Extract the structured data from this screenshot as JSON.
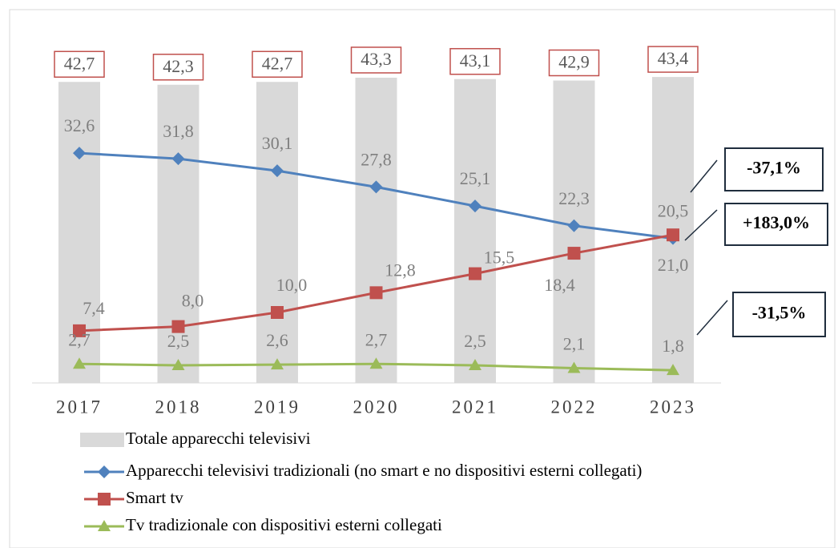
{
  "chart_data": {
    "type": "combo",
    "categories": [
      "2017",
      "2018",
      "2019",
      "2020",
      "2021",
      "2022",
      "2023"
    ],
    "ylim": [
      0,
      50
    ],
    "series": [
      {
        "name": "Totale apparecchi televisivi",
        "type": "bar",
        "color": "#d9d9d9",
        "values": [
          42.7,
          42.3,
          42.7,
          43.3,
          43.1,
          42.9,
          43.4
        ],
        "value_labels": [
          "42,7",
          "42,3",
          "42,7",
          "43,3",
          "43,1",
          "42,9",
          "43,4"
        ]
      },
      {
        "name": "Apparecchi televisivi tradizionali (no smart e no dispositivi esterni collegati)",
        "type": "line",
        "color": "#4f81bd",
        "marker": "diamond",
        "values": [
          32.6,
          31.8,
          30.1,
          27.8,
          25.1,
          22.3,
          20.5
        ],
        "value_labels": [
          "32,6",
          "31,8",
          "30,1",
          "27,8",
          "25,1",
          "22,3",
          "20,5"
        ]
      },
      {
        "name": "Smart tv",
        "type": "line",
        "color": "#c0504d",
        "marker": "square",
        "values": [
          7.4,
          8.0,
          10.0,
          12.8,
          15.5,
          18.4,
          21.0
        ],
        "value_labels": [
          "7,4",
          "8,0",
          "10,0",
          "12,8",
          "15,5",
          "18,4",
          "21,0"
        ]
      },
      {
        "name": "Tv tradizionale con dispositivi esterni collegati",
        "type": "line",
        "color": "#9bbb59",
        "marker": "triangle",
        "values": [
          2.7,
          2.5,
          2.6,
          2.7,
          2.5,
          2.1,
          1.8
        ],
        "value_labels": [
          "2,7",
          "2,5",
          "2,6",
          "2,7",
          "2,5",
          "2,1",
          "1,8"
        ]
      }
    ],
    "annotations": [
      "-37,1%",
      "+183,0%",
      "-31,5%"
    ]
  }
}
